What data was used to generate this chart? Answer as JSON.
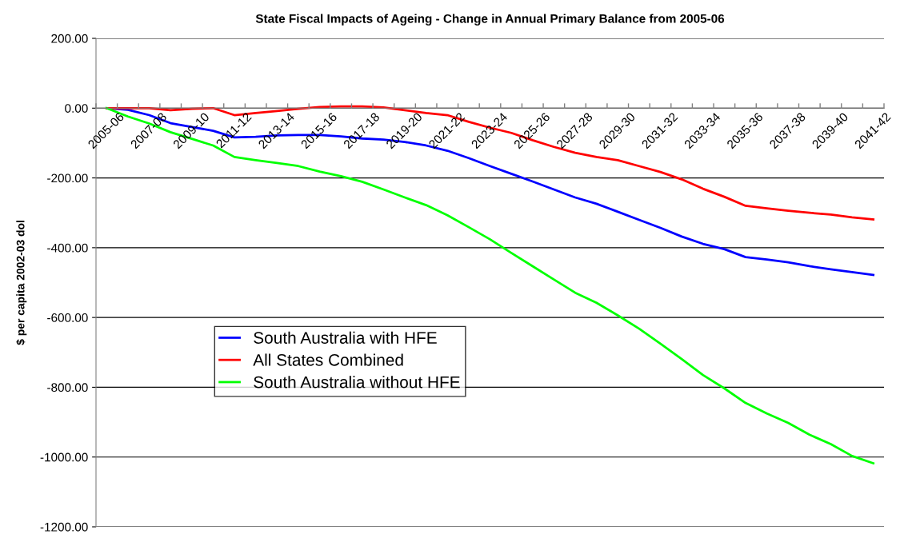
{
  "chart_data": {
    "type": "line",
    "title": "State Fiscal Impacts of Ageing - Change in Annual Primary Balance from 2005-06",
    "ylabel": "$ per capita 2002-03 dol",
    "categories": [
      "2005-06",
      null,
      "2007-08",
      null,
      "2009-10",
      null,
      "2011-12",
      null,
      "2013-14",
      null,
      "2015-16",
      null,
      "2017-18",
      null,
      "2019-20",
      null,
      "2021-22",
      null,
      "2023-24",
      null,
      "2025-26",
      null,
      "2027-28",
      null,
      "2029-30",
      null,
      "2031-32",
      null,
      "2033-34",
      null,
      "2035-36",
      null,
      "2037-38",
      null,
      "2039-40",
      null,
      "2041-42"
    ],
    "series": [
      {
        "name": "South Australia with HFE",
        "color": "#0000ff",
        "values": [
          0,
          -5,
          -20,
          -43,
          -54,
          -65,
          -84,
          -82,
          -78,
          -77,
          -77,
          -81,
          -87,
          -90,
          -97,
          -107,
          -122,
          -143,
          -166,
          -188,
          -210,
          -233,
          -256,
          -274,
          -297,
          -320,
          -343,
          -368,
          -389,
          -404,
          -427,
          -434,
          -442,
          -453,
          -462,
          -470,
          -478
        ]
      },
      {
        "name": "All States Combined",
        "color": "#ff0000",
        "values": [
          0,
          0,
          0,
          -6,
          -2,
          0,
          -20,
          -14,
          -8,
          -2,
          3,
          5,
          5,
          2,
          -6,
          -14,
          -20,
          -39,
          -56,
          -71,
          -92,
          -111,
          -128,
          -140,
          -149,
          -166,
          -183,
          -204,
          -231,
          -254,
          -280,
          -287,
          -294,
          -300,
          -305,
          -313,
          -319
        ]
      },
      {
        "name": "South Australia without HFE",
        "color": "#00ff00",
        "values": [
          0,
          -24,
          -44,
          -69,
          -88,
          -107,
          -140,
          -149,
          -157,
          -166,
          -182,
          -195,
          -211,
          -233,
          -256,
          -278,
          -307,
          -341,
          -376,
          -415,
          -453,
          -491,
          -529,
          -558,
          -594,
          -632,
          -675,
          -719,
          -765,
          -803,
          -845,
          -875,
          -902,
          -936,
          -963,
          -997,
          -1018
        ]
      }
    ],
    "ylim": [
      -1200,
      200
    ],
    "yticks": [
      {
        "value": -1200,
        "label": "-1200.00"
      },
      {
        "value": -1000,
        "label": "-1000.00"
      },
      {
        "value": -800,
        "label": "-800.00"
      },
      {
        "value": -600,
        "label": "-600.00"
      },
      {
        "value": -400,
        "label": "-400.00"
      },
      {
        "value": -200,
        "label": "-200.00"
      },
      {
        "value": 0,
        "label": "0.00"
      },
      {
        "value": 200,
        "label": "200.00"
      }
    ],
    "grid": "y",
    "legend": "bottom left",
    "marker": "none",
    "line_style": "solid"
  }
}
